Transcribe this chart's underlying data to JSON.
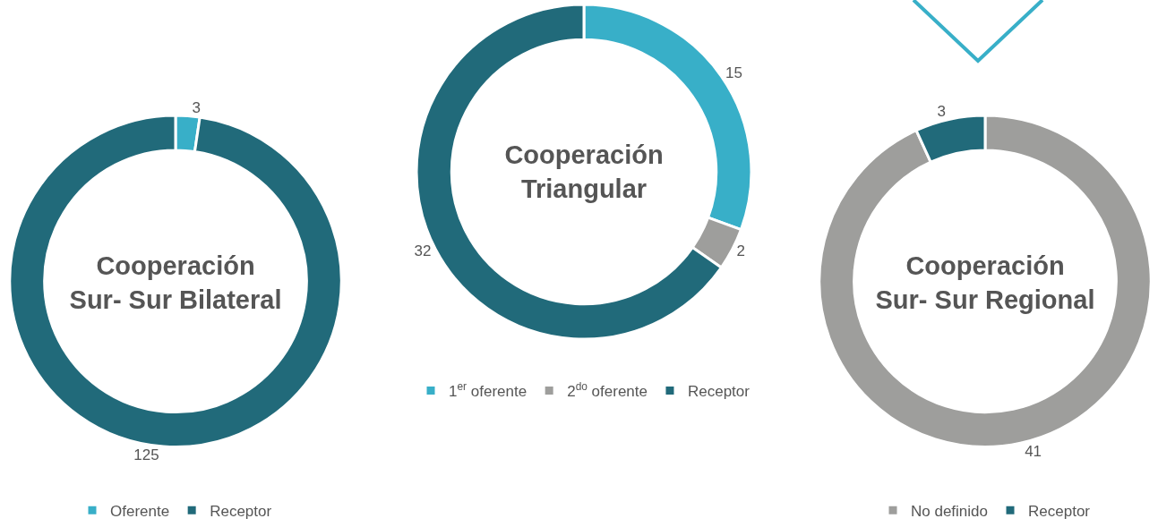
{
  "chart_data": [
    {
      "type": "donut",
      "title": "Cooperación Sur- Sur Bilateral",
      "categories": [
        "Oferente",
        "Receptor"
      ],
      "values": [
        3,
        125
      ],
      "colors": [
        "#38afc8",
        "#216a7a"
      ],
      "data_labels": true,
      "legend": "bottom"
    },
    {
      "type": "donut",
      "title": "Cooperación Triangular",
      "categories": [
        "1$^{er}$ oferente",
        "2$^{do}$ oferente",
        "Receptor"
      ],
      "values": [
        15,
        2,
        32
      ],
      "colors": [
        "#38afc8",
        "#9e9e9c",
        "#216a7a"
      ],
      "data_labels": true,
      "legend": "bottom"
    },
    {
      "type": "donut",
      "title": "Cooperación Sur- Sur Regional",
      "categories": [
        "No definido",
        "Receptor"
      ],
      "values": [
        41,
        3
      ],
      "colors": [
        "#9e9e9c",
        "#216a7a"
      ],
      "data_labels": true,
      "legend": "bottom"
    }
  ]
}
